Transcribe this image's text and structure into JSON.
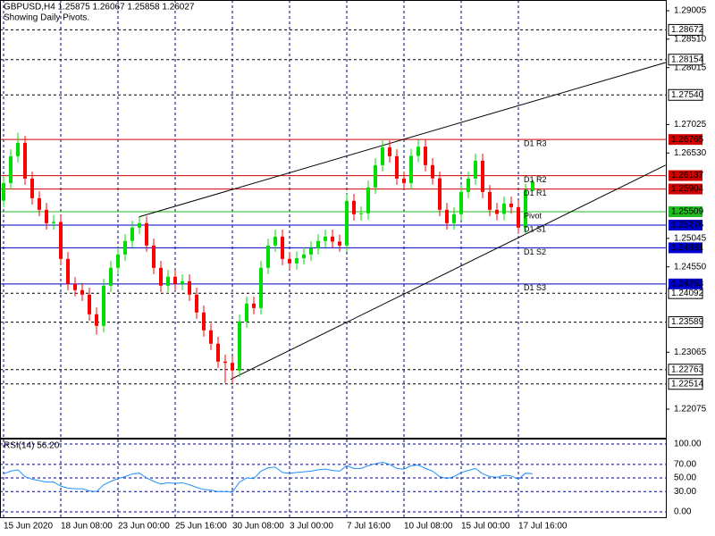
{
  "chart_data": {
    "type": "candlestick",
    "title": "GBPUSD,H4  1.25875 1.26067 1.25858 1.26027",
    "subtitle": "Showing Daily Pivots.",
    "categories": [
      "15 Jun 2020",
      null,
      null,
      null,
      null,
      null,
      null,
      null,
      "18 Jun 08:00",
      null,
      null,
      null,
      null,
      null,
      null,
      null,
      "23 Jun 00:00",
      null,
      null,
      null,
      null,
      null,
      null,
      null,
      "25 Jun 16:00",
      null,
      null,
      null,
      null,
      null,
      null,
      null,
      "30 Jun 08:00",
      null,
      null,
      null,
      null,
      null,
      null,
      null,
      "3 Jul 00:00",
      null,
      null,
      null,
      null,
      null,
      null,
      null,
      "7 Jul 16:00",
      null,
      null,
      null,
      null,
      null,
      null,
      null,
      "10 Jul 08:00",
      null,
      null,
      null,
      null,
      null,
      null,
      null,
      "15 Jul 00:00",
      null,
      null,
      null,
      null,
      null,
      null,
      null,
      "17 Jul 16:00",
      null,
      null
    ],
    "ohlc": {
      "open": [
        1.257,
        1.26008,
        1.26474,
        1.26707,
        1.26086,
        1.25744,
        1.25542,
        1.25309,
        1.2533,
        1.24688,
        1.24253,
        1.24145,
        1.24067,
        1.23725,
        1.23524,
        1.24222,
        1.24533,
        1.24766,
        1.24999,
        1.25232,
        1.25309,
        1.24921,
        1.24533,
        1.24222,
        1.24378,
        1.24253,
        1.243,
        1.24067,
        1.23757,
        1.23446,
        1.23213,
        1.22902,
        1.2288,
        1.22747,
        1.23601,
        1.23912,
        1.23834,
        1.24533,
        1.24921,
        1.25076,
        1.24688,
        1.24611,
        1.247,
        1.24766,
        1.24875,
        1.24999,
        1.25076,
        1.2499,
        1.24921,
        1.25698,
        1.25465,
        1.2548,
        1.2593,
        1.26319,
        1.26629,
        1.26474,
        1.26086,
        1.26008,
        1.2648,
        1.2664,
        1.26319,
        1.2609,
        1.25542,
        1.25309,
        1.25465,
        1.25853,
        1.26086,
        1.26396,
        1.25853,
        1.25542,
        1.2547,
        1.25651,
        1.25589,
        1.25232,
        1.25875
      ],
      "high": [
        1.26128,
        1.26594,
        1.2688,
        1.26827,
        1.26206,
        1.25864,
        1.25662,
        1.2545,
        1.2545,
        1.24808,
        1.24373,
        1.24265,
        1.24187,
        1.23845,
        1.24342,
        1.24653,
        1.24886,
        1.25119,
        1.25352,
        1.25429,
        1.25429,
        1.25041,
        1.24653,
        1.24498,
        1.24498,
        1.2442,
        1.2442,
        1.24187,
        1.23877,
        1.23566,
        1.23333,
        1.23022,
        1.23,
        1.23721,
        1.24032,
        1.24032,
        1.24653,
        1.25041,
        1.25196,
        1.25196,
        1.24808,
        1.2482,
        1.24886,
        1.24995,
        1.25119,
        1.25196,
        1.25196,
        1.2511,
        1.25818,
        1.25818,
        1.256,
        1.2605,
        1.26439,
        1.26749,
        1.26749,
        1.26594,
        1.26206,
        1.266,
        1.2676,
        1.2676,
        1.26439,
        1.2621,
        1.25662,
        1.25585,
        1.25973,
        1.26206,
        1.26516,
        1.26516,
        1.25973,
        1.25662,
        1.25771,
        1.25771,
        1.25709,
        1.25995,
        1.26067
      ],
      "low": [
        1.2559,
        1.25898,
        1.26364,
        1.25976,
        1.25634,
        1.25432,
        1.25199,
        1.25199,
        1.24578,
        1.24143,
        1.24035,
        1.23957,
        1.23615,
        1.2337,
        1.23414,
        1.24112,
        1.24423,
        1.24656,
        1.24889,
        1.25122,
        1.24811,
        1.24423,
        1.24112,
        1.24112,
        1.24143,
        1.24143,
        1.23957,
        1.23647,
        1.23336,
        1.23103,
        1.22792,
        1.2253,
        1.2252,
        1.22637,
        1.23491,
        1.23724,
        1.23724,
        1.24423,
        1.24811,
        1.24578,
        1.24501,
        1.24501,
        1.2459,
        1.24656,
        1.24765,
        1.24889,
        1.2488,
        1.24811,
        1.24811,
        1.25355,
        1.25355,
        1.2537,
        1.2582,
        1.26209,
        1.26364,
        1.25976,
        1.25898,
        1.25898,
        1.2637,
        1.26209,
        1.2598,
        1.25432,
        1.25199,
        1.25199,
        1.25355,
        1.25743,
        1.25976,
        1.25743,
        1.25432,
        1.2536,
        1.2536,
        1.25479,
        1.25122,
        1.25122,
        1.25858
      ],
      "close": [
        1.26008,
        1.26474,
        1.26707,
        1.26086,
        1.25744,
        1.25542,
        1.25309,
        1.2533,
        1.24688,
        1.24253,
        1.24145,
        1.24067,
        1.23725,
        1.23524,
        1.24222,
        1.24533,
        1.24766,
        1.24999,
        1.25232,
        1.25309,
        1.24921,
        1.24533,
        1.24222,
        1.24378,
        1.24253,
        1.243,
        1.24067,
        1.23757,
        1.23446,
        1.23213,
        1.22902,
        1.2288,
        1.22747,
        1.23601,
        1.23912,
        1.23834,
        1.24533,
        1.24921,
        1.25076,
        1.24688,
        1.24611,
        1.247,
        1.24766,
        1.24875,
        1.24999,
        1.25076,
        1.2499,
        1.24921,
        1.25698,
        1.25465,
        1.2548,
        1.2593,
        1.26319,
        1.26629,
        1.26474,
        1.26086,
        1.26008,
        1.2648,
        1.2664,
        1.26319,
        1.2609,
        1.25542,
        1.25309,
        1.25465,
        1.25853,
        1.26086,
        1.26396,
        1.25853,
        1.25542,
        1.2547,
        1.25651,
        1.25589,
        1.25232,
        1.25875,
        1.26027
      ]
    },
    "up_color": "#00dd00",
    "down_color": "#ff0000",
    "ylim": [
      1.21578,
      1.29191
    ],
    "yticks": [
      1.29005,
      {
        "value": 1.2851,
        "label": "1.28510"
      },
      1.28015,
      1.27025,
      {
        "value": 1.2653,
        "label": "1.26530"
      },
      1.25045,
      {
        "value": 1.2455,
        "label": "1.24550"
      },
      1.23065,
      1.22075
    ],
    "grid": true,
    "levels": [
      {
        "value": 1.28672,
        "color": "#000000"
      },
      {
        "value": 1.28154,
        "color": "#000000"
      },
      {
        "value": 1.2754,
        "label": "1.27540",
        "color": "#000000"
      },
      {
        "value": 1.24092,
        "color": "#000000"
      },
      {
        "value": 1.23589,
        "color": "#000000"
      },
      {
        "value": 1.22763,
        "color": "#000000"
      },
      {
        "value": 1.22514,
        "color": "#000000"
      }
    ],
    "pivots": [
      {
        "name": "D1 R3",
        "value": 1.26765,
        "color": "#d00000"
      },
      {
        "name": "D1 R2",
        "value": 1.26137,
        "color": "#d00000"
      },
      {
        "name": "D1 R1",
        "value": 1.25904,
        "color": "#d00000"
      },
      {
        "name": "Pivot",
        "value": 1.25509,
        "color": "#22bb22"
      },
      {
        "name": "D1 S1",
        "value": 1.25276,
        "color": "#0000cc"
      },
      {
        "name": "D1 S2",
        "value": 1.24881,
        "color": "#0000cc"
      },
      {
        "name": "D1 S3",
        "value": 1.24253,
        "color": "#0000cc"
      }
    ],
    "trendlines": [
      {
        "x": [
          18.9,
          92.6
        ],
        "y": [
          1.25418,
          1.28104
        ],
        "color": "#000000"
      },
      {
        "x": [
          31.75,
          92.6
        ],
        "y": [
          1.22592,
          1.26319
        ],
        "color": "#000000"
      }
    ],
    "rsi": {
      "title": "RSI(14) 56.20",
      "color": "#1e90ff",
      "values": [
        56,
        60,
        62,
        52,
        48,
        46,
        44,
        44,
        38,
        35,
        34,
        34,
        31,
        30,
        40,
        45,
        49,
        52,
        56,
        57,
        50,
        45,
        41,
        43,
        42,
        43,
        40,
        36,
        33,
        32,
        30,
        30,
        29,
        44,
        50,
        49,
        60,
        65,
        66,
        58,
        57,
        58,
        59,
        60,
        62,
        63,
        61,
        60,
        68,
        64,
        64,
        68,
        71,
        73,
        70,
        64,
        63,
        68,
        69,
        64,
        60,
        52,
        49,
        52,
        58,
        61,
        64,
        56,
        52,
        51,
        54,
        53,
        48,
        57,
        56.2
      ],
      "ylim": [
        -9.2,
        106.6
      ],
      "yticks": [
        {
          "value": 100,
          "label": "100.00"
        },
        {
          "value": 70,
          "label": "70.00"
        },
        {
          "value": 50,
          "label": "50.00"
        },
        {
          "value": 30,
          "label": "30.00"
        },
        {
          "value": 0,
          "label": "0.00"
        }
      ]
    }
  }
}
